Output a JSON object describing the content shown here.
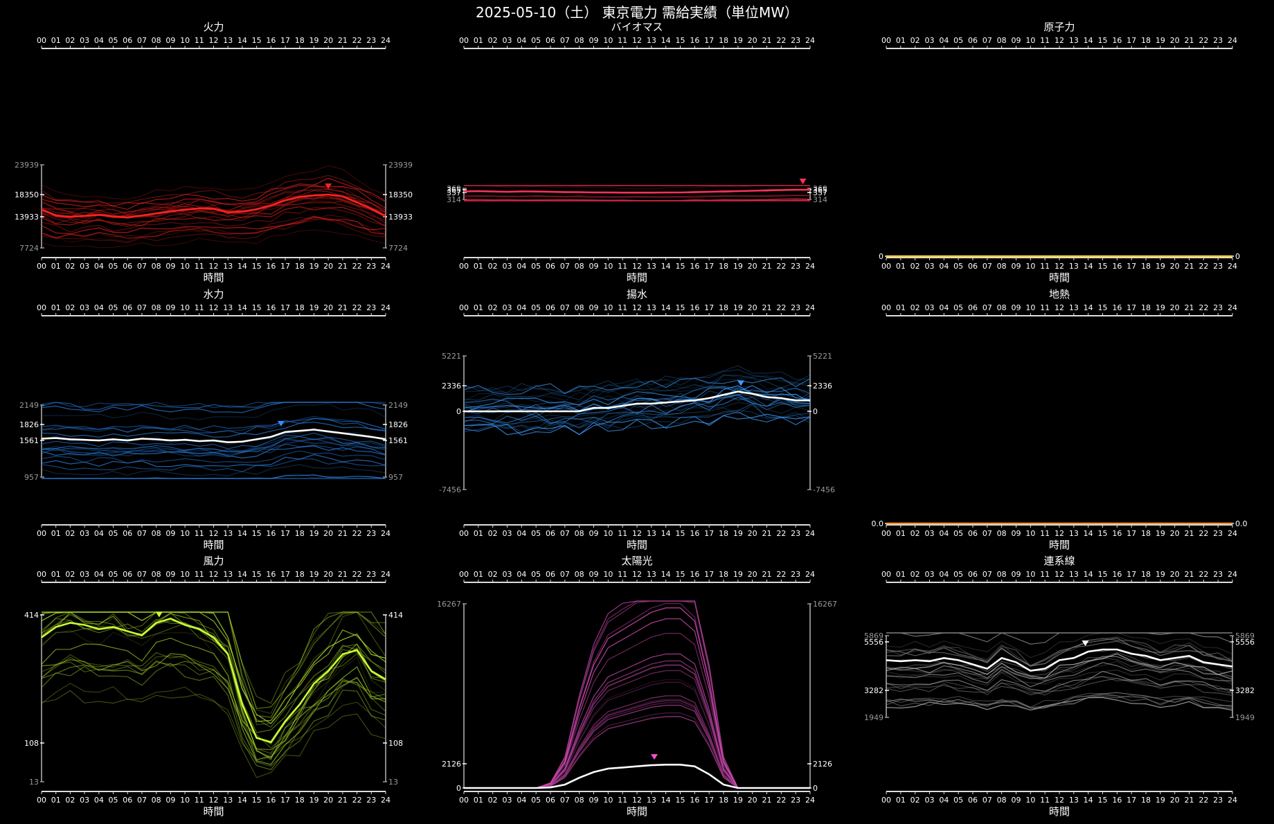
{
  "title": "2025-05-10（土） 東京電力 需給実績（単位MW）",
  "xlabel": "時間",
  "hour_labels": [
    "00",
    "01",
    "02",
    "03",
    "04",
    "05",
    "06",
    "07",
    "08",
    "09",
    "10",
    "11",
    "12",
    "13",
    "14",
    "15",
    "16",
    "17",
    "18",
    "19",
    "20",
    "21",
    "22",
    "23",
    "24"
  ],
  "chart_data": [
    {
      "type": "line",
      "title": "火力",
      "color": "#ff2222",
      "y_ticks": {
        "max": 23939,
        "current": 18350,
        "avg": 13933,
        "min": 7724
      },
      "today_profile": [
        15400,
        14200,
        13900,
        14100,
        14300,
        14000,
        13800,
        14200,
        14600,
        15000,
        15300,
        15600,
        15500,
        14800,
        15000,
        15400,
        16200,
        17200,
        17900,
        18200,
        18350,
        18000,
        16800,
        15500,
        14100
      ],
      "peak_hour": 20
    },
    {
      "type": "line",
      "title": "バイオマス",
      "color": "#ff3355",
      "y_ticks": {
        "max": 369,
        "current": 365,
        "avg": 357,
        "min": 314
      },
      "today_profile": [
        360,
        361,
        360,
        359,
        360,
        360,
        359,
        358,
        358,
        357,
        357,
        356,
        356,
        356,
        357,
        357,
        358,
        359,
        360,
        361,
        362,
        363,
        364,
        365,
        365
      ],
      "peak_hour": 23.5
    },
    {
      "type": "line",
      "title": "原子力",
      "color": "#ffcc33",
      "y_ticks": {
        "current": 0
      },
      "today_profile": [
        0,
        0,
        0,
        0,
        0,
        0,
        0,
        0,
        0,
        0,
        0,
        0,
        0,
        0,
        0,
        0,
        0,
        0,
        0,
        0,
        0,
        0,
        0,
        0,
        0
      ]
    },
    {
      "type": "line",
      "title": "水力",
      "color": "#2f8fff",
      "y_ticks": {
        "max": 2149,
        "current": 1826,
        "avg": 1561,
        "min": 957
      },
      "today_profile": [
        1590,
        1600,
        1580,
        1570,
        1560,
        1580,
        1560,
        1590,
        1580,
        1560,
        1570,
        1550,
        1560,
        1530,
        1540,
        1580,
        1620,
        1700,
        1720,
        1740,
        1710,
        1680,
        1650,
        1620,
        1580
      ],
      "peak_hour": 16.7
    },
    {
      "type": "line",
      "title": "揚水",
      "color": "#3a9cff",
      "y_ticks": {
        "max": 5221,
        "current": 2336,
        "avg": 0,
        "min": -7456
      },
      "today_profile": [
        0,
        0,
        0,
        0,
        0,
        0,
        0,
        0,
        0,
        300,
        300,
        500,
        700,
        700,
        800,
        900,
        1000,
        1200,
        1500,
        1800,
        1600,
        1300,
        1200,
        1000,
        1000
      ],
      "peak_hour": 19.2
    },
    {
      "type": "line",
      "title": "地熱",
      "color": "#ff9933",
      "y_ticks": {
        "current": "0.0"
      },
      "today_profile": [
        0,
        0,
        0,
        0,
        0,
        0,
        0,
        0,
        0,
        0,
        0,
        0,
        0,
        0,
        0,
        0,
        0,
        0,
        0,
        0,
        0,
        0,
        0,
        0,
        0
      ]
    },
    {
      "type": "line",
      "title": "風力",
      "color": "#c8ff33",
      "y_ticks": {
        "current": 414,
        "avg": 108,
        "min": 13
      },
      "today_profile": [
        360,
        385,
        395,
        390,
        380,
        385,
        375,
        365,
        395,
        405,
        390,
        380,
        360,
        320,
        200,
        120,
        110,
        160,
        200,
        250,
        280,
        320,
        330,
        280,
        260
      ],
      "peak_hour": 8.2
    },
    {
      "type": "line",
      "title": "太陽光",
      "color": "#ee55cc",
      "y_ticks": {
        "max": 16267,
        "current": 2126,
        "avg": 0
      },
      "today_profile": [
        0,
        0,
        0,
        0,
        0,
        0,
        50,
        300,
        900,
        1400,
        1700,
        1800,
        1900,
        2000,
        2050,
        2050,
        1900,
        1200,
        300,
        0,
        0,
        0,
        0,
        0,
        0
      ],
      "peak_hour": 13.2
    },
    {
      "type": "line",
      "title": "連系線",
      "color": "#e8e8e8",
      "y_ticks": {
        "max": 5869,
        "current": 5556,
        "avg": 3282,
        "min": 1949
      },
      "today_profile": [
        4700,
        4650,
        4700,
        4650,
        4800,
        4700,
        4500,
        4300,
        4800,
        4600,
        4200,
        4300,
        4700,
        4800,
        5100,
        5200,
        5200,
        5000,
        4900,
        4700,
        4800,
        4900,
        4600,
        4500,
        4400
      ],
      "peak_hour": 13.8
    }
  ]
}
